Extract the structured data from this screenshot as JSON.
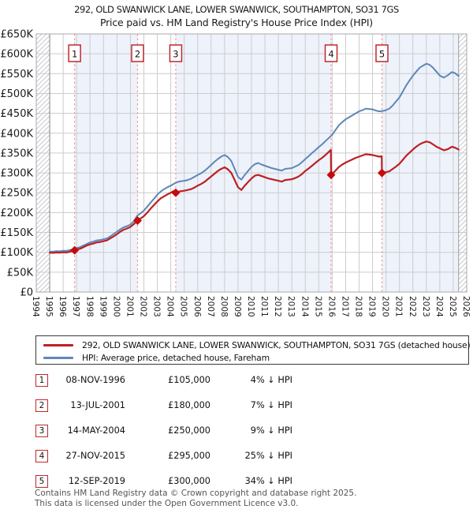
{
  "header": {
    "title": "292, OLD SWANWICK LANE, LOWER SWANWICK, SOUTHAMPTON, SO31 7GS",
    "subtitle": "Price paid vs. HM Land Registry's House Price Index (HPI)"
  },
  "legend": {
    "items": [
      {
        "swatch_color": "#bc2023",
        "label": "292, OLD SWANWICK LANE, LOWER SWANWICK, SOUTHAMPTON, SO31 7GS (detached house)"
      },
      {
        "swatch_color": "#5e87b8",
        "label": "HPI: Average price, detached house, Fareham"
      }
    ]
  },
  "transactions": {
    "rows": [
      {
        "num": "1",
        "date": "08-NOV-1996",
        "price": "£105,000",
        "vs_hpi": "4% ↓ HPI"
      },
      {
        "num": "2",
        "date": "13-JUL-2001",
        "price": "£180,000",
        "vs_hpi": "7% ↓ HPI"
      },
      {
        "num": "3",
        "date": "14-MAY-2004",
        "price": "£250,000",
        "vs_hpi": "9% ↓ HPI"
      },
      {
        "num": "4",
        "date": "27-NOV-2015",
        "price": "£295,000",
        "vs_hpi": "25% ↓ HPI"
      },
      {
        "num": "5",
        "date": "12-SEP-2019",
        "price": "£300,000",
        "vs_hpi": "34% ↓ HPI"
      }
    ]
  },
  "footer": {
    "lines": [
      "Contains HM Land Registry data © Crown copyright and database right 2025.",
      "This data is licensed under the Open Government Licence v3.0."
    ]
  },
  "chart_data": {
    "type": "line",
    "x_axis": {
      "min": 1994,
      "max": 2026,
      "tick_labels": [
        "1994",
        "1995",
        "1996",
        "1997",
        "1998",
        "1999",
        "2000",
        "2001",
        "2002",
        "2003",
        "2004",
        "2005",
        "2006",
        "2007",
        "2008",
        "2009",
        "2010",
        "2011",
        "2012",
        "2013",
        "2014",
        "2015",
        "2016",
        "2017",
        "2018",
        "2019",
        "2020",
        "2021",
        "2022",
        "2023",
        "2024",
        "2025",
        "2026"
      ]
    },
    "y_axis": {
      "min": 0,
      "max_k": 650,
      "tick_step_k": 50,
      "tick_labels": [
        "£0",
        "£50K",
        "£100K",
        "£150K",
        "£200K",
        "£250K",
        "£300K",
        "£350K",
        "£400K",
        "£450K",
        "£500K",
        "£550K",
        "£600K",
        "£650K"
      ]
    },
    "data_start_year": 1995.0,
    "data_end_year": 2025.4,
    "grid": true,
    "legend_position": "below",
    "sales": [
      {
        "n": "1",
        "year": 1996.85,
        "price_k": 105
      },
      {
        "n": "2",
        "year": 2001.53,
        "price_k": 180
      },
      {
        "n": "3",
        "year": 2004.37,
        "price_k": 250
      },
      {
        "n": "4",
        "year": 2015.92,
        "price_k": 295
      },
      {
        "n": "5",
        "year": 2019.7,
        "price_k": 300
      }
    ],
    "series": [
      {
        "name": "HPI: Average price, detached house, Fareham",
        "color": "#5e87b8",
        "width": 2,
        "points": [
          [
            1995.0,
            102
          ],
          [
            1995.25,
            101.5
          ],
          [
            1995.5,
            103
          ],
          [
            1995.75,
            102.5
          ],
          [
            1996.0,
            104
          ],
          [
            1996.25,
            103.5
          ],
          [
            1996.5,
            106
          ],
          [
            1996.75,
            108
          ],
          [
            1997.0,
            111
          ],
          [
            1997.25,
            113
          ],
          [
            1997.5,
            117
          ],
          [
            1997.75,
            121
          ],
          [
            1998.0,
            125
          ],
          [
            1998.25,
            127
          ],
          [
            1998.5,
            130
          ],
          [
            1998.75,
            131
          ],
          [
            1999.0,
            133
          ],
          [
            1999.25,
            135
          ],
          [
            1999.5,
            140
          ],
          [
            1999.75,
            146
          ],
          [
            2000.0,
            152
          ],
          [
            2000.25,
            158
          ],
          [
            2000.5,
            163
          ],
          [
            2000.75,
            166
          ],
          [
            2001.0,
            170
          ],
          [
            2001.25,
            178
          ],
          [
            2001.5,
            192
          ],
          [
            2001.75,
            198
          ],
          [
            2002.0,
            205
          ],
          [
            2002.25,
            215
          ],
          [
            2002.5,
            225
          ],
          [
            2002.75,
            235
          ],
          [
            2003.0,
            245
          ],
          [
            2003.25,
            253
          ],
          [
            2003.5,
            259
          ],
          [
            2003.75,
            264
          ],
          [
            2004.0,
            268
          ],
          [
            2004.25,
            273
          ],
          [
            2004.5,
            277
          ],
          [
            2004.75,
            279
          ],
          [
            2005.0,
            280
          ],
          [
            2005.25,
            282
          ],
          [
            2005.5,
            285
          ],
          [
            2005.75,
            290
          ],
          [
            2006.0,
            295
          ],
          [
            2006.25,
            299
          ],
          [
            2006.5,
            305
          ],
          [
            2006.75,
            312
          ],
          [
            2007.0,
            320
          ],
          [
            2007.25,
            328
          ],
          [
            2007.5,
            335
          ],
          [
            2007.75,
            341
          ],
          [
            2008.0,
            345
          ],
          [
            2008.25,
            340
          ],
          [
            2008.5,
            330
          ],
          [
            2008.75,
            310
          ],
          [
            2009.0,
            290
          ],
          [
            2009.25,
            283
          ],
          [
            2009.5,
            295
          ],
          [
            2009.75,
            305
          ],
          [
            2010.0,
            315
          ],
          [
            2010.25,
            322
          ],
          [
            2010.5,
            325
          ],
          [
            2010.75,
            321
          ],
          [
            2011.0,
            318
          ],
          [
            2011.25,
            315
          ],
          [
            2011.5,
            312
          ],
          [
            2011.75,
            310
          ],
          [
            2012.0,
            308
          ],
          [
            2012.25,
            306
          ],
          [
            2012.5,
            310
          ],
          [
            2012.75,
            311
          ],
          [
            2013.0,
            312
          ],
          [
            2013.25,
            316
          ],
          [
            2013.5,
            320
          ],
          [
            2013.75,
            327
          ],
          [
            2014.0,
            335
          ],
          [
            2014.25,
            342
          ],
          [
            2014.5,
            350
          ],
          [
            2014.75,
            357
          ],
          [
            2015.0,
            365
          ],
          [
            2015.25,
            372
          ],
          [
            2015.5,
            380
          ],
          [
            2015.75,
            388
          ],
          [
            2016.0,
            396
          ],
          [
            2016.25,
            408
          ],
          [
            2016.5,
            420
          ],
          [
            2016.75,
            428
          ],
          [
            2017.0,
            435
          ],
          [
            2017.25,
            440
          ],
          [
            2017.5,
            445
          ],
          [
            2017.75,
            450
          ],
          [
            2018.0,
            455
          ],
          [
            2018.25,
            458
          ],
          [
            2018.5,
            462
          ],
          [
            2018.75,
            461
          ],
          [
            2019.0,
            460
          ],
          [
            2019.25,
            457
          ],
          [
            2019.5,
            455
          ],
          [
            2019.75,
            456
          ],
          [
            2020.0,
            458
          ],
          [
            2020.25,
            462
          ],
          [
            2020.5,
            470
          ],
          [
            2020.75,
            480
          ],
          [
            2021.0,
            490
          ],
          [
            2021.25,
            505
          ],
          [
            2021.5,
            520
          ],
          [
            2021.75,
            533
          ],
          [
            2022.0,
            545
          ],
          [
            2022.25,
            555
          ],
          [
            2022.5,
            565
          ],
          [
            2022.75,
            570
          ],
          [
            2023.0,
            575
          ],
          [
            2023.25,
            572
          ],
          [
            2023.5,
            565
          ],
          [
            2023.75,
            555
          ],
          [
            2024.0,
            545
          ],
          [
            2024.3,
            540
          ],
          [
            2024.6,
            546
          ],
          [
            2024.9,
            554
          ],
          [
            2025.1,
            552
          ],
          [
            2025.4,
            544
          ]
        ]
      },
      {
        "name": "292, OLD SWANWICK LANE, LOWER SWANWICK, SOUTHAMPTON, SO31 7GS (detached house)",
        "color": "#bc2023",
        "width": 2.2,
        "points": [
          [
            1995.0,
            99
          ],
          [
            1995.25,
            98.5
          ],
          [
            1995.5,
            99.5
          ],
          [
            1995.75,
            99
          ],
          [
            1996.0,
            100
          ],
          [
            1996.25,
            99.5
          ],
          [
            1996.5,
            101.5
          ],
          [
            1996.85,
            105
          ],
          [
            1997.0,
            107
          ],
          [
            1997.25,
            109
          ],
          [
            1997.5,
            113
          ],
          [
            1997.75,
            117
          ],
          [
            1998.0,
            120
          ],
          [
            1998.25,
            122
          ],
          [
            1998.5,
            125
          ],
          [
            1998.75,
            126
          ],
          [
            1999.0,
            128
          ],
          [
            1999.25,
            130
          ],
          [
            1999.5,
            135
          ],
          [
            1999.75,
            140
          ],
          [
            2000.0,
            146
          ],
          [
            2000.25,
            152
          ],
          [
            2000.5,
            157
          ],
          [
            2000.75,
            160
          ],
          [
            2001.0,
            164
          ],
          [
            2001.25,
            171
          ],
          [
            2001.53,
            180
          ],
          [
            2001.75,
            185
          ],
          [
            2002.0,
            191
          ],
          [
            2002.25,
            200
          ],
          [
            2002.5,
            210
          ],
          [
            2002.75,
            219
          ],
          [
            2003.0,
            228
          ],
          [
            2003.25,
            236
          ],
          [
            2003.5,
            241
          ],
          [
            2003.75,
            246
          ],
          [
            2004.0,
            250
          ],
          [
            2004.2,
            254
          ],
          [
            2004.37,
            250
          ],
          [
            2004.5,
            252
          ],
          [
            2004.75,
            254
          ],
          [
            2005.0,
            255
          ],
          [
            2005.25,
            257
          ],
          [
            2005.5,
            259
          ],
          [
            2005.75,
            263
          ],
          [
            2006.0,
            268
          ],
          [
            2006.25,
            272
          ],
          [
            2006.5,
            277
          ],
          [
            2006.75,
            284
          ],
          [
            2007.0,
            291
          ],
          [
            2007.25,
            298
          ],
          [
            2007.5,
            305
          ],
          [
            2007.75,
            310
          ],
          [
            2008.0,
            314
          ],
          [
            2008.25,
            309
          ],
          [
            2008.5,
            300
          ],
          [
            2008.75,
            282
          ],
          [
            2009.0,
            264
          ],
          [
            2009.25,
            257
          ],
          [
            2009.5,
            268
          ],
          [
            2009.75,
            277
          ],
          [
            2010.0,
            286
          ],
          [
            2010.25,
            293
          ],
          [
            2010.5,
            295
          ],
          [
            2010.75,
            292
          ],
          [
            2011.0,
            289
          ],
          [
            2011.25,
            286
          ],
          [
            2011.5,
            284
          ],
          [
            2011.75,
            282
          ],
          [
            2012.0,
            280
          ],
          [
            2012.25,
            278
          ],
          [
            2012.5,
            282
          ],
          [
            2012.75,
            283
          ],
          [
            2013.0,
            284
          ],
          [
            2013.25,
            287
          ],
          [
            2013.5,
            291
          ],
          [
            2013.75,
            297
          ],
          [
            2014.0,
            305
          ],
          [
            2014.25,
            311
          ],
          [
            2014.5,
            318
          ],
          [
            2014.75,
            325
          ],
          [
            2015.0,
            332
          ],
          [
            2015.25,
            338
          ],
          [
            2015.5,
            345
          ],
          [
            2015.75,
            353
          ],
          [
            2015.9,
            358
          ],
          [
            2015.92,
            295
          ],
          [
            2016.0,
            297
          ],
          [
            2016.25,
            306
          ],
          [
            2016.5,
            315
          ],
          [
            2016.75,
            321
          ],
          [
            2017.0,
            326
          ],
          [
            2017.25,
            330
          ],
          [
            2017.5,
            334
          ],
          [
            2017.75,
            338
          ],
          [
            2018.0,
            341
          ],
          [
            2018.25,
            344
          ],
          [
            2018.5,
            347
          ],
          [
            2018.75,
            346
          ],
          [
            2019.0,
            345
          ],
          [
            2019.25,
            343
          ],
          [
            2019.5,
            341
          ],
          [
            2019.68,
            342
          ],
          [
            2019.7,
            300
          ],
          [
            2020.0,
            302
          ],
          [
            2020.25,
            304
          ],
          [
            2020.5,
            310
          ],
          [
            2020.75,
            316
          ],
          [
            2021.0,
            323
          ],
          [
            2021.25,
            333
          ],
          [
            2021.5,
            343
          ],
          [
            2021.75,
            351
          ],
          [
            2022.0,
            359
          ],
          [
            2022.25,
            366
          ],
          [
            2022.5,
            372
          ],
          [
            2022.75,
            376
          ],
          [
            2023.0,
            379
          ],
          [
            2023.25,
            377
          ],
          [
            2023.5,
            372
          ],
          [
            2023.75,
            366
          ],
          [
            2024.0,
            362
          ],
          [
            2024.3,
            357
          ],
          [
            2024.6,
            360
          ],
          [
            2024.9,
            366
          ],
          [
            2025.1,
            364
          ],
          [
            2025.4,
            359
          ]
        ]
      }
    ],
    "colors": {
      "band_fill": "#eef2fb",
      "grid": "#cccccc",
      "frame": "#aaaaaa",
      "sale_dashed_line": "#f19999",
      "sale_marker": "#c40a0a",
      "marker_box_border": "#c0282d",
      "hatch_line": "#c5c9d0",
      "no_data_edge": "#8a8a8a"
    }
  }
}
